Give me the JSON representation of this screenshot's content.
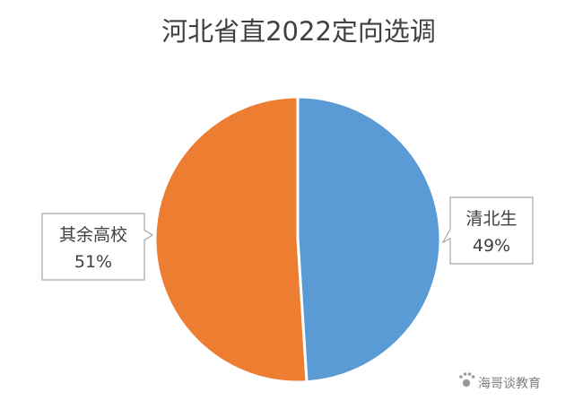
{
  "chart_data": {
    "type": "pie",
    "title": "河北省直2022定向选调",
    "slices": [
      {
        "label": "清北生",
        "value": 49,
        "value_label": "49%",
        "color": "#5b9bd5"
      },
      {
        "label": "其余高校",
        "value": 51,
        "value_label": "51%",
        "color": "#ed7d31"
      }
    ],
    "data_labels": "callout",
    "legend": "none"
  },
  "watermark": {
    "text": "海哥谈教育",
    "icon": "paw-icon"
  }
}
